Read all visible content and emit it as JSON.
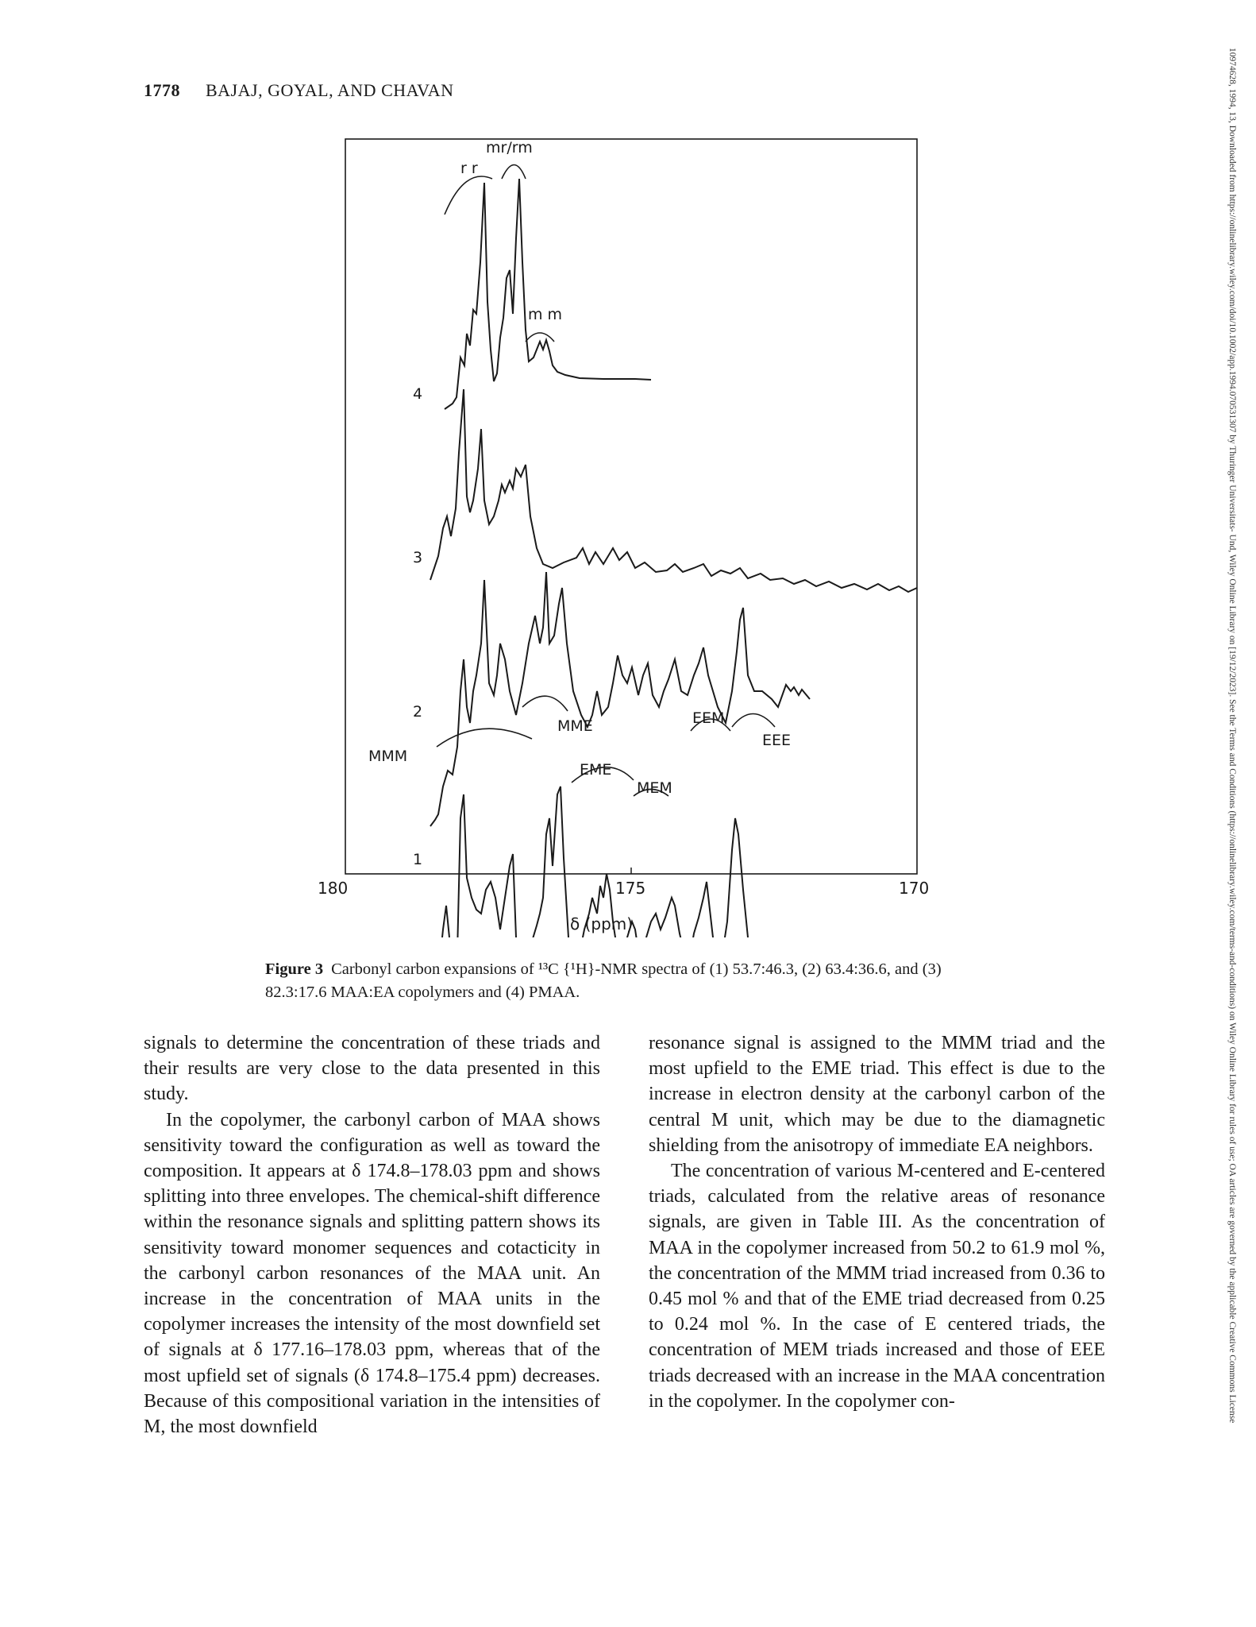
{
  "header": {
    "page_number": "1778",
    "authors": "BAJAJ, GOYAL, AND CHAVAN"
  },
  "sidebar_text": "10974628, 1994, 13, Downloaded from https://onlinelibrary.wiley.com/doi/10.1002/app.1994.070531307 by Thuringer Universitats- Und, Wiley Online Library on [19/12/2023]. See the Terms and Conditions (https://onlinelibrary.wiley.com/terms-and-conditions) on Wiley Online Library for rules of use; OA articles are governed by the applicable Creative Commons License",
  "figure": {
    "axis_ticks": [
      "180",
      "175",
      "170"
    ],
    "axis_label": "δ (ppm)",
    "spectrum_labels": [
      "4",
      "3",
      "2",
      "1"
    ],
    "annotations": {
      "rr": "r r",
      "mrrm": "mr/rm",
      "mm": "m m",
      "MMM": "MMM",
      "MME": "MME",
      "EME": "EME",
      "MEM": "MEM",
      "EEM": "EEM",
      "EEE": "EEE"
    }
  },
  "chart_data": {
    "type": "line",
    "xlabel": "δ (ppm)",
    "xlim": [
      180,
      170
    ],
    "xticks": [
      180,
      175,
      170
    ],
    "series": [
      {
        "name": "4"
      },
      {
        "name": "3"
      },
      {
        "name": "2"
      },
      {
        "name": "1"
      }
    ],
    "annotations": [
      "r r",
      "mr/rm",
      "m m",
      "MMM",
      "MME",
      "EME",
      "MEM",
      "EEM",
      "EEE"
    ]
  },
  "caption": {
    "label": "Figure 3",
    "text": "Carbonyl carbon expansions of ¹³C {¹H}-NMR spectra of (1) 53.7:46.3, (2) 63.4:36.6, and (3) 82.3:17.6 MAA:EA copolymers and (4) PMAA."
  },
  "body": {
    "left": [
      {
        "text": "signals to determine the concentration of these triads and their results are very close to the data presented in this study.",
        "indent": false
      },
      {
        "text": "In the copolymer, the carbonyl carbon of MAA shows sensitivity toward the configuration as well as toward the composition. It appears at δ 174.8–178.03 ppm and shows splitting into three envelopes. The chemical-shift difference within the resonance signals and splitting pattern shows its sensitivity toward monomer sequences and cotacticity in the carbonyl carbon resonances of the MAA unit. An increase in the concentration of MAA units in the copolymer increases the intensity of the most downfield set of signals at δ 177.16–178.03 ppm, whereas that of the most upfield set of signals (δ 174.8–175.4 ppm) decreases. Because of this compositional variation in the intensities of M, the most downfield",
        "indent": true
      }
    ],
    "right": [
      {
        "text": "resonance signal is assigned to the MMM triad and the most upfield to the EME triad. This effect is due to the increase in electron density at the carbonyl carbon of the central M unit, which may be due to the diamagnetic shielding from the anisotropy of immediate EA neighbors.",
        "indent": false
      },
      {
        "text": "The concentration of various M-centered and E-centered triads, calculated from the relative areas of resonance signals, are given in Table III. As the concentration of MAA in the copolymer increased from 50.2 to 61.9 mol %, the concentration of the MMM triad increased from 0.36 to 0.45 mol % and that of the EME triad decreased from 0.25 to 0.24 mol %. In the case of E centered triads, the concentration of MEM triads increased and those of EEE triads decreased with an increase in the MAA concentration in the copolymer. In the copolymer con-",
        "indent": true
      }
    ]
  }
}
